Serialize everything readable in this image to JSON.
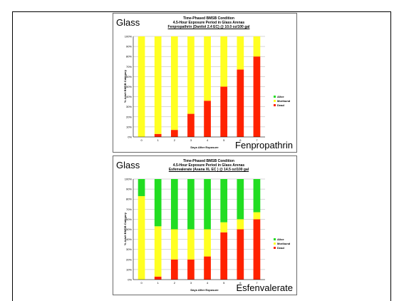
{
  "colors": {
    "alive": "#22dd22",
    "moribund": "#ffff22",
    "dead": "#ff2200",
    "grid": "#b0b0b0"
  },
  "chart_data": [
    {
      "type": "bar",
      "corner_label": "Glass",
      "name_label": "Fenpropathrin",
      "title": "Time-Phased BMSB Condition",
      "subtitle": "4.5-Hour Exposure Period in Glass Arenas",
      "subtitle2": "Fenpropathrin (Danitol 2.4 EC) @ 10.0 oz/100 gal",
      "xlabel": "Days After Exposure",
      "ylabel": "% Adult BMSB Category",
      "ylim": [
        0,
        100
      ],
      "yticks": [
        "0%",
        "10%",
        "20%",
        "30%",
        "40%",
        "50%",
        "60%",
        "70%",
        "80%",
        "90%",
        "100%"
      ],
      "categories": [
        "0",
        "1",
        "2",
        "3",
        "4",
        "5",
        "6",
        "7"
      ],
      "legend_position": "right",
      "series": [
        {
          "name": "Alive",
          "values": [
            0,
            0,
            0,
            0,
            0,
            0,
            0,
            0
          ]
        },
        {
          "name": "Moribund",
          "values": [
            100,
            97,
            93,
            77,
            64,
            50,
            33,
            20
          ]
        },
        {
          "name": "Dead",
          "values": [
            0,
            3,
            7,
            23,
            36,
            50,
            67,
            80
          ]
        }
      ]
    },
    {
      "type": "bar",
      "corner_label": "Glass",
      "name_label": "Esfenvalerate",
      "title": "Time-Phased BMSB Condition",
      "subtitle": "4.5-Hour Exposure Period in Glass Arenas",
      "subtitle2": "Esfenvalerate (Asana XL EC ) @ 14.5 oz/100 gal",
      "xlabel": "Days After Exposure",
      "ylabel": "% Adult BMSB Category",
      "ylim": [
        0,
        100
      ],
      "yticks": [
        "0%",
        "10%",
        "20%",
        "30%",
        "40%",
        "50%",
        "60%",
        "70%",
        "80%",
        "90%",
        "100%"
      ],
      "categories": [
        "0",
        "1",
        "2",
        "3",
        "4",
        "5",
        "6",
        "7"
      ],
      "legend_position": "right",
      "series": [
        {
          "name": "Alive",
          "values": [
            17,
            47,
            50,
            50,
            50,
            43,
            40,
            33
          ]
        },
        {
          "name": "Moribund",
          "values": [
            83,
            50,
            30,
            30,
            27,
            10,
            10,
            7
          ]
        },
        {
          "name": "Dead",
          "values": [
            0,
            3,
            20,
            20,
            23,
            47,
            50,
            60
          ]
        }
      ]
    }
  ]
}
